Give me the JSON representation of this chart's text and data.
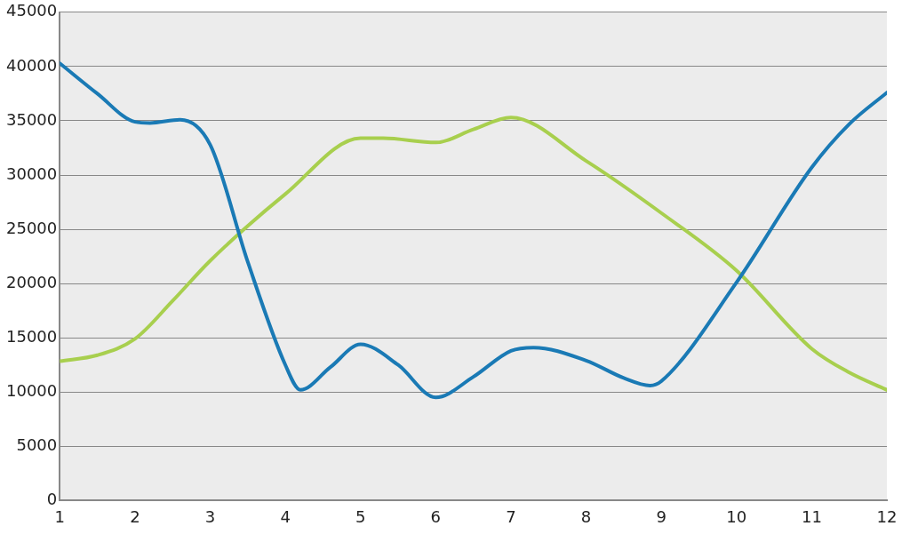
{
  "chart_data": {
    "type": "line",
    "xlim": [
      1,
      12
    ],
    "xticks": [
      1,
      2,
      3,
      4,
      5,
      6,
      7,
      8,
      9,
      10,
      11,
      12
    ],
    "ylim": [
      0,
      45000
    ],
    "yticks": [
      0,
      5000,
      10000,
      15000,
      20000,
      25000,
      30000,
      35000,
      40000,
      45000
    ],
    "grid": "y",
    "legend": false,
    "marker": "none",
    "line_style": "solid",
    "series": [
      {
        "color": "#1a7ab5",
        "x": [
          1,
          1.5,
          2,
          2.2,
          2.6,
          3,
          3.5,
          4,
          4.2,
          4.6,
          5,
          5.5,
          6,
          6.5,
          7,
          7.3,
          8,
          8.5,
          8.85,
          9,
          10,
          11,
          11.5,
          12
        ],
        "values": [
          40300,
          37500,
          34900,
          34800,
          35100,
          32800,
          22000,
          12500,
          10200,
          12300,
          14400,
          12500,
          9500,
          11400,
          13800,
          14100,
          12900,
          11300,
          10600,
          11000,
          20100,
          30700,
          34700,
          37600
        ]
      },
      {
        "color": "#a8cf4e",
        "x": [
          1,
          1.5,
          2,
          2.5,
          3,
          4,
          5,
          5.3,
          6,
          6.5,
          7,
          8,
          9,
          10,
          11,
          11.5,
          12
        ],
        "values": [
          12850,
          13400,
          14900,
          18400,
          22100,
          28250,
          33400,
          33400,
          33000,
          34200,
          35300,
          31300,
          26500,
          21200,
          14000,
          11800,
          10200
        ]
      }
    ]
  }
}
